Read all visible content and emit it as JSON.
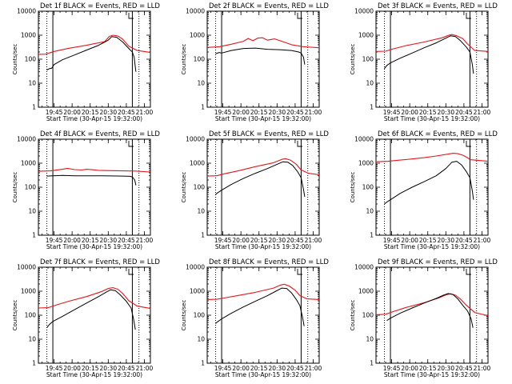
{
  "figure": {
    "colors": {
      "events": "#000000",
      "lld": "#e8161c",
      "axes": "#000000",
      "background": "#ffffff"
    },
    "ylabel": "Counts/sec",
    "xlabel": "Start Time (30-Apr-15 19:32:00)",
    "x_ticks": [
      "19:45",
      "20:00",
      "20:15",
      "20:30",
      "20:45",
      "21:00"
    ],
    "y_ticks": [
      "1",
      "10",
      "100",
      "1000",
      "10000"
    ],
    "chart_data": [
      {
        "type": "line",
        "title": "Det 1f BLACK = Events, RED = LLD",
        "xlim": [
          0,
          93
        ],
        "ylim": [
          1,
          10000
        ],
        "yscale": "log",
        "markers": {
          "dotted": [
            7.0,
            83.5
          ],
          "solid": [
            12.0,
            78.0
          ]
        },
        "series": [
          {
            "name": "RED = LLD",
            "color": "#e8161c",
            "x": [
              0,
              6,
              13,
              25,
              40,
              55,
              59,
              62,
              66,
              70,
              75,
              82,
              93
            ],
            "values": [
              160,
              162,
              210,
              285,
              380,
              540,
              900,
              1000,
              920,
              680,
              350,
              230,
              190
            ]
          },
          {
            "name": "BLACK = Events",
            "color": "#000000",
            "x": [
              7,
              9,
              11,
              13,
              20,
              30,
              40,
              50,
              58,
              61,
              65,
              70,
              76,
              78,
              79.5,
              80.5,
              81
            ],
            "values": [
              35,
              40,
              42,
              60,
              95,
              150,
              240,
              380,
              620,
              880,
              820,
              520,
              250,
              200,
              120,
              45,
              30
            ]
          }
        ]
      },
      {
        "type": "line",
        "title": "Det 2f BLACK = Events, RED = LLD",
        "xlim": [
          0,
          93
        ],
        "ylim": [
          1,
          10000
        ],
        "yscale": "log",
        "markers": {
          "dotted": [
            7.0,
            83.5
          ],
          "solid": [
            12.0,
            78.0
          ]
        },
        "series": [
          {
            "name": "RED = LLD",
            "color": "#e8161c",
            "x": [
              0,
              10,
              20,
              30,
              34,
              38,
              42,
              46,
              50,
              56,
              62,
              70,
              80,
              93
            ],
            "values": [
              310,
              330,
              420,
              560,
              730,
              590,
              760,
              780,
              620,
              700,
              560,
              400,
              330,
              300
            ]
          },
          {
            "name": "BLACK = Events",
            "color": "#000000",
            "x": [
              7,
              10,
              12,
              20,
              30,
              40,
              50,
              60,
              70,
              76,
              78,
              80,
              81
            ],
            "values": [
              170,
              190,
              180,
              230,
              280,
              290,
              260,
              250,
              230,
              200,
              180,
              120,
              60
            ]
          }
        ]
      },
      {
        "type": "line",
        "title": "Det 3f BLACK = Events, RED = LLD",
        "xlim": [
          0,
          93
        ],
        "ylim": [
          1,
          10000
        ],
        "yscale": "log",
        "markers": {
          "dotted": [
            7.0,
            83.5
          ],
          "solid": [
            12.0,
            78.0
          ]
        },
        "series": [
          {
            "name": "RED = LLD",
            "color": "#e8161c",
            "x": [
              0,
              8,
              13,
              25,
              40,
              55,
              60,
              63,
              67,
              72,
              76,
              82,
              93
            ],
            "values": [
              210,
              215,
              260,
              370,
              520,
              780,
              980,
              1060,
              950,
              720,
              430,
              230,
              210
            ]
          },
          {
            "name": "BLACK = Events",
            "color": "#000000",
            "x": [
              7,
              9,
              12,
              20,
              30,
              40,
              50,
              58,
              62,
              66,
              70,
              75,
              78,
              80,
              81
            ],
            "values": [
              40,
              55,
              70,
              110,
              180,
              300,
              480,
              750,
              950,
              880,
              600,
              320,
              200,
              60,
              25
            ]
          }
        ]
      },
      {
        "type": "line",
        "title": "Det 4f BLACK = Events, RED = LLD",
        "xlim": [
          0,
          93
        ],
        "ylim": [
          1,
          10000
        ],
        "yscale": "log",
        "markers": {
          "dotted": [
            7.0,
            83.5
          ],
          "solid": [
            12.0,
            78.0
          ]
        },
        "series": [
          {
            "name": "RED = LLD",
            "color": "#e8161c",
            "x": [
              0,
              10,
              20,
              24,
              30,
              36,
              40,
              46,
              50,
              60,
              70,
              80,
              93
            ],
            "values": [
              460,
              480,
              560,
              610,
              540,
              520,
              560,
              530,
              500,
              490,
              480,
              470,
              430
            ]
          },
          {
            "name": "BLACK = Events",
            "color": "#000000",
            "x": [
              7,
              12,
              20,
              30,
              40,
              50,
              60,
              70,
              76,
              78,
              80,
              81
            ],
            "values": [
              290,
              300,
              310,
              300,
              300,
              300,
              295,
              290,
              285,
              270,
              200,
              120
            ]
          }
        ]
      },
      {
        "type": "line",
        "title": "Det 5f BLACK = Events, RED = LLD",
        "xlim": [
          0,
          93
        ],
        "ylim": [
          1,
          10000
        ],
        "yscale": "log",
        "markers": {
          "dotted": [
            7.0,
            83.5
          ],
          "solid": [
            12.0,
            78.0
          ]
        },
        "series": [
          {
            "name": "RED = LLD",
            "color": "#e8161c",
            "x": [
              0,
              8,
              14,
              25,
              40,
              55,
              62,
              65,
              69,
              74,
              78,
              84,
              93
            ],
            "values": [
              290,
              300,
              360,
              470,
              720,
              1050,
              1450,
              1550,
              1350,
              900,
              520,
              380,
              330
            ]
          },
          {
            "name": "BLACK = Events",
            "color": "#000000",
            "x": [
              7,
              9,
              12,
              20,
              30,
              40,
              50,
              58,
              63,
              67,
              71,
              75,
              78,
              80,
              81
            ],
            "values": [
              50,
              60,
              75,
              130,
              230,
              380,
              600,
              900,
              1150,
              1100,
              800,
              450,
              250,
              80,
              40
            ]
          }
        ]
      },
      {
        "type": "line",
        "title": "Det 6f BLACK = Events, RED = LLD",
        "xlim": [
          0,
          93
        ],
        "ylim": [
          1,
          10000
        ],
        "yscale": "log",
        "markers": {
          "dotted": [
            7.0,
            83.5
          ],
          "solid": [
            12.0,
            78.0
          ]
        },
        "series": [
          {
            "name": "RED = LLD",
            "color": "#e8161c",
            "x": [
              0,
              10,
              20,
              30,
              40,
              50,
              60,
              64,
              68,
              72,
              76,
              78,
              93
            ],
            "values": [
              1150,
              1200,
              1350,
              1500,
              1700,
              2000,
              2400,
              2600,
              2500,
              2150,
              1700,
              1400,
              1200
            ]
          },
          {
            "name": "BLACK = Events",
            "color": "#000000",
            "x": [
              7,
              9,
              12,
              20,
              30,
              40,
              50,
              58,
              63,
              67,
              71,
              75,
              78,
              80,
              81
            ],
            "values": [
              20,
              24,
              30,
              55,
              100,
              170,
              300,
              600,
              1100,
              1200,
              850,
              450,
              250,
              70,
              30
            ]
          }
        ]
      },
      {
        "type": "line",
        "title": "Det 7f BLACK = Events, RED = LLD",
        "xlim": [
          0,
          93
        ],
        "ylim": [
          1,
          10000
        ],
        "yscale": "log",
        "markers": {
          "dotted": [
            7.0,
            83.5
          ],
          "solid": [
            12.0,
            78.0
          ]
        },
        "series": [
          {
            "name": "RED = LLD",
            "color": "#e8161c",
            "x": [
              0,
              8,
              14,
              25,
              40,
              52,
              58,
              62,
              66,
              70,
              75,
              82,
              93
            ],
            "values": [
              200,
              205,
              260,
              380,
              600,
              950,
              1300,
              1400,
              1200,
              800,
              400,
              240,
              190
            ]
          },
          {
            "name": "BLACK = Events",
            "color": "#000000",
            "x": [
              7,
              9,
              12,
              20,
              30,
              40,
              50,
              56,
              60,
              64,
              68,
              73,
              77,
              79,
              80.5
            ],
            "values": [
              30,
              40,
              55,
              90,
              170,
              320,
              600,
              900,
              1150,
              1050,
              700,
              380,
              200,
              70,
              25
            ]
          }
        ]
      },
      {
        "type": "line",
        "title": "Det 8f BLACK = Events, RED = LLD",
        "xlim": [
          0,
          93
        ],
        "ylim": [
          1,
          10000
        ],
        "yscale": "log",
        "markers": {
          "dotted": [
            7.0,
            83.5
          ],
          "solid": [
            12.0,
            78.0
          ]
        },
        "series": [
          {
            "name": "RED = LLD",
            "color": "#e8161c",
            "x": [
              0,
              8,
              14,
              25,
              40,
              55,
              61,
              64,
              68,
              73,
              77,
              83,
              93
            ],
            "values": [
              450,
              460,
              520,
              650,
              900,
              1350,
              1800,
              1950,
              1650,
              1100,
              650,
              480,
              450
            ]
          },
          {
            "name": "BLACK = Events",
            "color": "#000000",
            "x": [
              7,
              9,
              12,
              20,
              30,
              40,
              50,
              57,
              62,
              66,
              70,
              74,
              77,
              79,
              80.5
            ],
            "values": [
              45,
              55,
              70,
              120,
              220,
              380,
              650,
              1000,
              1350,
              1300,
              850,
              450,
              250,
              90,
              35
            ]
          }
        ]
      },
      {
        "type": "line",
        "title": "Det 9f BLACK = Events, RED = LLD",
        "xlim": [
          0,
          93
        ],
        "ylim": [
          1,
          10000
        ],
        "yscale": "log",
        "markers": {
          "dotted": [
            7.0,
            83.5
          ],
          "solid": [
            12.0,
            78.0
          ]
        },
        "series": [
          {
            "name": "RED = LLD",
            "color": "#e8161c",
            "x": [
              0,
              8,
              14,
              25,
              40,
              52,
              58,
              62,
              66,
              70,
              75,
              82,
              93
            ],
            "values": [
              105,
              110,
              140,
              210,
              330,
              520,
              700,
              780,
              680,
              470,
              260,
              130,
              95
            ]
          },
          {
            "name": "BLACK = Events",
            "color": "#000000",
            "x": [
              9,
              12,
              20,
              30,
              40,
              50,
              56,
              60,
              64,
              68,
              72,
              76,
              79,
              80.5
            ],
            "values": [
              60,
              75,
              120,
              200,
              320,
              500,
              680,
              800,
              720,
              470,
              260,
              150,
              70,
              30
            ]
          }
        ]
      }
    ]
  }
}
